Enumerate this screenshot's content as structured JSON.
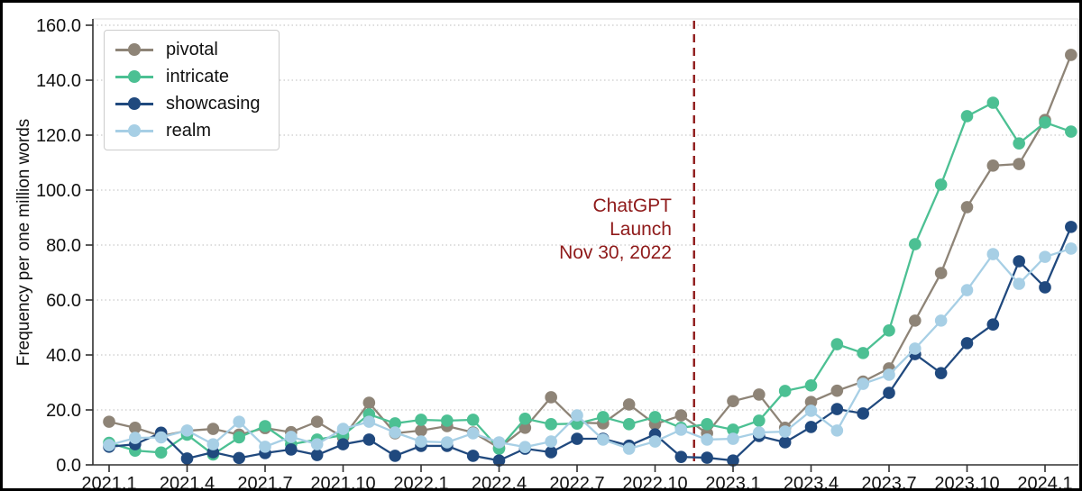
{
  "chart_data": {
    "type": "line",
    "title": "",
    "xlabel": "",
    "ylabel": "Frequency per one million words",
    "ylim": [
      0,
      160
    ],
    "grid": "horizontal-dotted",
    "legend_position": "upper-left",
    "y_ticks": [
      0,
      20,
      40,
      60,
      80,
      100,
      120,
      140,
      160
    ],
    "y_tick_format": "one-decimal",
    "x_tick_indices": [
      0,
      3,
      6,
      9,
      12,
      15,
      18,
      21,
      24,
      27,
      30,
      33,
      36
    ],
    "categories": [
      "2021.1",
      "2021.2",
      "2021.3",
      "2021.4",
      "2021.5",
      "2021.6",
      "2021.7",
      "2021.8",
      "2021.9",
      "2021.10",
      "2021.11",
      "2021.12",
      "2022.1",
      "2022.2",
      "2022.3",
      "2022.4",
      "2022.5",
      "2022.6",
      "2022.7",
      "2022.8",
      "2022.9",
      "2022.10",
      "2022.11",
      "2022.12",
      "2023.1",
      "2023.2",
      "2023.3",
      "2023.4",
      "2023.5",
      "2023.6",
      "2023.7",
      "2023.8",
      "2023.9",
      "2023.10",
      "2023.11",
      "2023.12",
      "2024.1",
      "2024.2"
    ],
    "series": [
      {
        "name": "pivotal",
        "color": "#8e8477",
        "values": [
          15.7,
          13.5,
          10.5,
          12.4,
          13.1,
          11.0,
          13.4,
          11.9,
          15.7,
          10.0,
          22.6,
          11.5,
          12.5,
          14.1,
          11.8,
          6.2,
          13.5,
          24.6,
          15.4,
          15.1,
          22.0,
          14.8,
          18.0,
          11.5,
          23.2,
          25.6,
          13.5,
          22.9,
          27.0,
          30.3,
          35.1,
          52.5,
          69.8,
          93.8,
          108.9,
          109.5,
          125.5,
          149.2
        ]
      },
      {
        "name": "intricate",
        "color": "#4cc093",
        "values": [
          8.0,
          5.2,
          4.5,
          11.0,
          3.8,
          10.0,
          14.1,
          7.5,
          9.2,
          10.8,
          18.4,
          15.1,
          16.4,
          16.1,
          16.4,
          5.9,
          16.8,
          14.8,
          15.0,
          17.4,
          14.8,
          17.4,
          13.5,
          14.8,
          12.8,
          16.1,
          26.9,
          28.9,
          43.9,
          40.7,
          48.9,
          80.3,
          102.0,
          126.9,
          131.8,
          117.0,
          124.6,
          121.3
        ]
      },
      {
        "name": "showcasing",
        "color": "#20497e",
        "values": [
          6.6,
          7.5,
          11.7,
          2.3,
          4.6,
          2.5,
          4.3,
          5.6,
          3.6,
          7.5,
          9.2,
          3.3,
          6.9,
          6.9,
          3.3,
          1.6,
          5.9,
          4.6,
          9.5,
          9.5,
          7.0,
          11.1,
          2.9,
          2.6,
          1.6,
          10.5,
          8.2,
          13.8,
          20.3,
          18.7,
          26.2,
          40.3,
          33.4,
          44.3,
          51.1,
          74.1,
          64.6,
          86.6
        ]
      },
      {
        "name": "realm",
        "color": "#a7cfe5",
        "values": [
          7.2,
          9.8,
          10.0,
          12.5,
          7.5,
          15.7,
          6.6,
          10.2,
          7.5,
          13.1,
          15.7,
          11.8,
          8.5,
          8.2,
          11.5,
          8.2,
          6.5,
          8.5,
          18.0,
          9.2,
          5.9,
          8.5,
          12.8,
          9.2,
          9.5,
          11.8,
          12.1,
          19.7,
          12.5,
          29.5,
          32.8,
          42.3,
          52.5,
          63.6,
          76.7,
          65.9,
          75.7,
          78.7
        ]
      }
    ],
    "annotation": {
      "lines": [
        "ChatGPT",
        "Launch",
        "Nov 30, 2022"
      ],
      "color": "#8f1a1a",
      "x_index": 22.5,
      "marker": "vertical-dashed-line"
    },
    "colors": {
      "grid": "#c9c9c9",
      "spine_dark": "#303030",
      "spine_light": "#d9d9d9",
      "tick_text": "#111111"
    }
  },
  "legend": {
    "items": [
      {
        "label": "pivotal"
      },
      {
        "label": "intricate"
      },
      {
        "label": "showcasing"
      },
      {
        "label": "realm"
      }
    ]
  }
}
